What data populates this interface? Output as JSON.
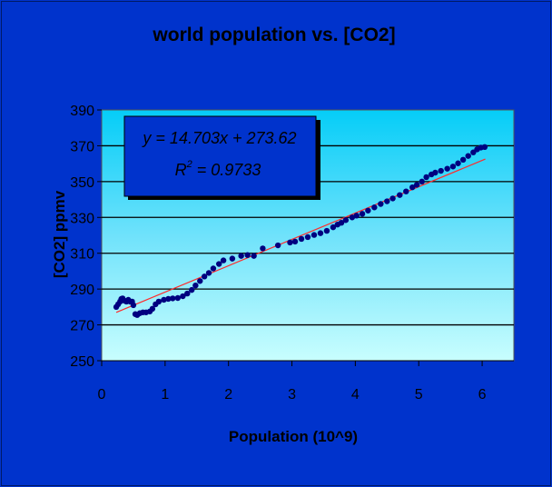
{
  "chart_data": {
    "type": "scatter",
    "title": "world population vs. [CO2]",
    "xlabel": "Population (10^9)",
    "ylabel": "[CO2] ppmv",
    "xlim": [
      0,
      6.5
    ],
    "ylim": [
      250,
      390
    ],
    "xticks": [
      "0",
      "1",
      "2",
      "3",
      "4",
      "5",
      "6"
    ],
    "yticks": [
      "250",
      "270",
      "290",
      "310",
      "330",
      "350",
      "370",
      "390"
    ],
    "grid": "horizontal",
    "trendline": {
      "type": "linear",
      "slope": 14.703,
      "intercept": 273.62,
      "x_range": [
        0.23,
        6.05
      ],
      "color": "#ff2a2a"
    },
    "equation_label": "y = 14.703x + 273.62",
    "r2_label_prefix": "R",
    "r2_label_sup": "2",
    "r2_label_value": " = 0.9733",
    "marker_color": "#000080",
    "points": [
      [
        0.23,
        280
      ],
      [
        0.26,
        281.5
      ],
      [
        0.29,
        283
      ],
      [
        0.31,
        284.5
      ],
      [
        0.33,
        284.8
      ],
      [
        0.36,
        283.5
      ],
      [
        0.39,
        283
      ],
      [
        0.42,
        284
      ],
      [
        0.45,
        283
      ],
      [
        0.48,
        283
      ],
      [
        0.5,
        281
      ],
      [
        0.53,
        276
      ],
      [
        0.56,
        275.5
      ],
      [
        0.6,
        276.5
      ],
      [
        0.65,
        277
      ],
      [
        0.7,
        277
      ],
      [
        0.76,
        277.5
      ],
      [
        0.8,
        279
      ],
      [
        0.85,
        281.5
      ],
      [
        0.9,
        283
      ],
      [
        0.98,
        284
      ],
      [
        1.05,
        284.5
      ],
      [
        1.12,
        284.8
      ],
      [
        1.2,
        285
      ],
      [
        1.28,
        286
      ],
      [
        1.35,
        287.5
      ],
      [
        1.42,
        289.5
      ],
      [
        1.48,
        292
      ],
      [
        1.55,
        294.5
      ],
      [
        1.62,
        297
      ],
      [
        1.69,
        299
      ],
      [
        1.76,
        301.5
      ],
      [
        1.85,
        304
      ],
      [
        1.92,
        306
      ],
      [
        2.06,
        307
      ],
      [
        2.2,
        308.5
      ],
      [
        2.3,
        309
      ],
      [
        2.4,
        308.5
      ],
      [
        2.54,
        312.7
      ],
      [
        2.78,
        314.4
      ],
      [
        2.97,
        316
      ],
      [
        3.05,
        316.5
      ],
      [
        3.15,
        318
      ],
      [
        3.25,
        319
      ],
      [
        3.35,
        320.2
      ],
      [
        3.45,
        321.2
      ],
      [
        3.55,
        322.5
      ],
      [
        3.65,
        324.5
      ],
      [
        3.72,
        326
      ],
      [
        3.78,
        327
      ],
      [
        3.85,
        328.5
      ],
      [
        3.95,
        330
      ],
      [
        4.02,
        331
      ],
      [
        4.11,
        332
      ],
      [
        4.2,
        333.8
      ],
      [
        4.3,
        335.6
      ],
      [
        4.4,
        337.5
      ],
      [
        4.5,
        339
      ],
      [
        4.59,
        340.6
      ],
      [
        4.7,
        342.5
      ],
      [
        4.8,
        344.5
      ],
      [
        4.9,
        346.8
      ],
      [
        4.97,
        348.2
      ],
      [
        5.05,
        350
      ],
      [
        5.12,
        352.5
      ],
      [
        5.2,
        354
      ],
      [
        5.26,
        355
      ],
      [
        5.35,
        356
      ],
      [
        5.45,
        357.2
      ],
      [
        5.54,
        358.4
      ],
      [
        5.62,
        360.2
      ],
      [
        5.7,
        362.2
      ],
      [
        5.78,
        364.3
      ],
      [
        5.86,
        366.3
      ],
      [
        5.92,
        368
      ],
      [
        5.98,
        369
      ],
      [
        6.04,
        369.3
      ]
    ]
  }
}
